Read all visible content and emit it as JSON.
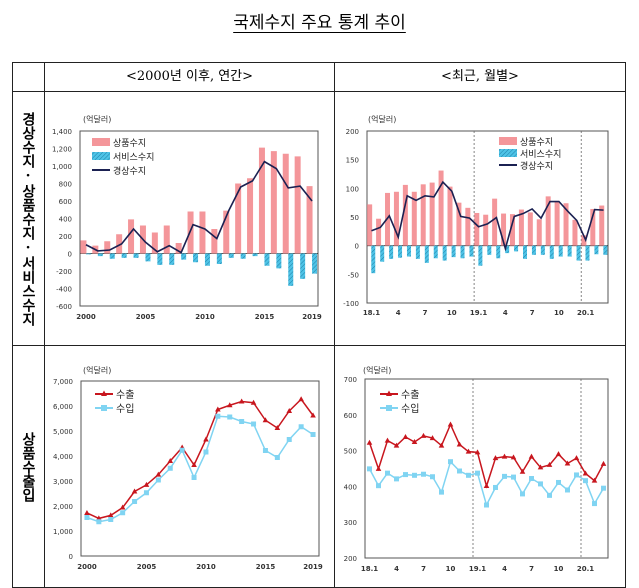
{
  "title": "국제수지 주요 통계 추이",
  "table": {
    "col_headers": [
      "<2000년 이후, 연간>",
      "<최근, 월별>"
    ],
    "row_labels": [
      "경상수지·상품수지·서비스수지",
      "상품수출입"
    ]
  },
  "colors": {
    "goods": "#f4969a",
    "services": "#4ec3e6",
    "current": "#1b2152",
    "export": "#c8161e",
    "import": "#80d4f2"
  },
  "chart_data": [
    {
      "type": "bar+line",
      "unit": "(억달러)",
      "ylim": [
        -600,
        1400
      ],
      "yticks": [
        "-600",
        "-400",
        "-200",
        "0",
        "200",
        "400",
        "600",
        "800",
        "1,000",
        "1,200",
        "1,400"
      ],
      "categories": [
        "2000",
        "2001",
        "2002",
        "2003",
        "2004",
        "2005",
        "2006",
        "2007",
        "2008",
        "2009",
        "2010",
        "2011",
        "2012",
        "2013",
        "2014",
        "2015",
        "2016",
        "2017",
        "2018",
        "2019"
      ],
      "x_ticks": [
        {
          "category": "2000",
          "label": "2000"
        },
        {
          "category": "2005",
          "label": "2005"
        },
        {
          "category": "2010",
          "label": "2010"
        },
        {
          "category": "2015",
          "label": "2015"
        },
        {
          "category": "2019",
          "label": "2019"
        }
      ],
      "legend": "top-left",
      "series": [
        {
          "name": "상품수지",
          "kind": "bar",
          "color_key": "goods",
          "values": [
            150,
            90,
            140,
            220,
            390,
            320,
            240,
            320,
            120,
            480,
            480,
            280,
            490,
            800,
            860,
            1210,
            1170,
            1140,
            1110,
            770
          ]
        },
        {
          "name": "서비스수지",
          "kind": "bar-hatched",
          "color_key": "services",
          "values": [
            -10,
            -30,
            -60,
            -50,
            -50,
            -90,
            -130,
            -130,
            -70,
            -100,
            -140,
            -120,
            -50,
            -60,
            -30,
            -140,
            -170,
            -370,
            -290,
            -230
          ]
        },
        {
          "name": "경상수지",
          "kind": "line",
          "color_key": "current",
          "values": [
            100,
            30,
            40,
            110,
            280,
            130,
            20,
            90,
            10,
            330,
            280,
            170,
            490,
            760,
            830,
            1050,
            970,
            750,
            770,
            600
          ]
        }
      ]
    },
    {
      "type": "bar+line",
      "unit": "(억달러)",
      "ylim": [
        -100,
        200
      ],
      "yticks": [
        "-100",
        "-50",
        "0",
        "50",
        "100",
        "150",
        "200"
      ],
      "categories": [
        "18.1",
        "18.2",
        "18.3",
        "18.4",
        "18.5",
        "18.6",
        "18.7",
        "18.8",
        "18.9",
        "18.10",
        "18.11",
        "18.12",
        "19.1",
        "19.2",
        "19.3",
        "19.4",
        "19.5",
        "19.6",
        "19.7",
        "19.8",
        "19.9",
        "19.10",
        "19.11",
        "19.12",
        "20.1",
        "20.2",
        "20.3"
      ],
      "x_ticks": [
        {
          "category": "18.1",
          "label": "18.1"
        },
        {
          "category": "18.4",
          "label": "4"
        },
        {
          "category": "18.7",
          "label": "7"
        },
        {
          "category": "18.10",
          "label": "10"
        },
        {
          "category": "19.1",
          "label": "19.1"
        },
        {
          "category": "19.4",
          "label": "4"
        },
        {
          "category": "19.7",
          "label": "7"
        },
        {
          "category": "19.10",
          "label": "10"
        },
        {
          "category": "20.1",
          "label": "20.1"
        }
      ],
      "year_separators": [
        "19.1",
        "20.1"
      ],
      "legend": "top-right",
      "series": [
        {
          "name": "상품수지",
          "kind": "bar",
          "color_key": "goods",
          "values": [
            72,
            47,
            92,
            94,
            106,
            94,
            107,
            110,
            131,
            103,
            75,
            66,
            57,
            54,
            82,
            56,
            55,
            63,
            58,
            46,
            86,
            78,
            74,
            45,
            18,
            64,
            70
          ]
        },
        {
          "name": "서비스수지",
          "kind": "bar-hatched",
          "color_key": "services",
          "values": [
            -48,
            -28,
            -23,
            -21,
            -19,
            -23,
            -30,
            -22,
            -26,
            -20,
            -22,
            -19,
            -35,
            -16,
            -22,
            -13,
            -10,
            -23,
            -16,
            -16,
            -23,
            -19,
            -19,
            -26,
            -26,
            -15,
            -16
          ]
        },
        {
          "name": "경상수지",
          "kind": "line",
          "color_key": "current",
          "values": [
            26,
            32,
            52,
            15,
            87,
            79,
            87,
            85,
            111,
            95,
            51,
            48,
            33,
            38,
            49,
            -5,
            51,
            56,
            64,
            48,
            77,
            77,
            60,
            44,
            10,
            63,
            62
          ]
        }
      ]
    },
    {
      "type": "line",
      "unit": "(억달러)",
      "ylim": [
        0,
        7000
      ],
      "yticks": [
        "0",
        "1,000",
        "2,000",
        "3,000",
        "4,000",
        "5,000",
        "6,000",
        "7,000"
      ],
      "categories": [
        "2000",
        "2001",
        "2002",
        "2003",
        "2004",
        "2005",
        "2006",
        "2007",
        "2008",
        "2009",
        "2010",
        "2011",
        "2012",
        "2013",
        "2014",
        "2015",
        "2016",
        "2017",
        "2018",
        "2019"
      ],
      "x_ticks": [
        {
          "category": "2000",
          "label": "2000"
        },
        {
          "category": "2005",
          "label": "2005"
        },
        {
          "category": "2010",
          "label": "2010"
        },
        {
          "category": "2015",
          "label": "2015"
        },
        {
          "category": "2019",
          "label": "2019"
        }
      ],
      "legend": "top-left",
      "series": [
        {
          "name": "수출",
          "kind": "line-triangle",
          "color_key": "export",
          "values": [
            1722,
            1504,
            1625,
            1938,
            2580,
            2844,
            3256,
            3800,
            4340,
            3640,
            4660,
            5860,
            6030,
            6180,
            6130,
            5430,
            5120,
            5800,
            6270,
            5620
          ]
        },
        {
          "name": "수입",
          "kind": "line-square",
          "color_key": "import",
          "values": [
            1540,
            1370,
            1460,
            1730,
            2180,
            2530,
            3040,
            3510,
            4230,
            3140,
            4160,
            5590,
            5560,
            5380,
            5280,
            4220,
            3940,
            4660,
            5170,
            4860
          ]
        }
      ]
    },
    {
      "type": "line",
      "unit": "(억달러)",
      "ylim": [
        200,
        700
      ],
      "yticks": [
        "200",
        "300",
        "400",
        "500",
        "600",
        "700"
      ],
      "categories": [
        "18.1",
        "18.2",
        "18.3",
        "18.4",
        "18.5",
        "18.6",
        "18.7",
        "18.8",
        "18.9",
        "18.10",
        "18.11",
        "18.12",
        "19.1",
        "19.2",
        "19.3",
        "19.4",
        "19.5",
        "19.6",
        "19.7",
        "19.8",
        "19.9",
        "19.10",
        "19.11",
        "19.12",
        "20.1",
        "20.2",
        "20.3"
      ],
      "x_ticks": [
        {
          "category": "18.1",
          "label": "18.1"
        },
        {
          "category": "18.4",
          "label": "4"
        },
        {
          "category": "18.7",
          "label": "7"
        },
        {
          "category": "18.10",
          "label": "10"
        },
        {
          "category": "19.1",
          "label": "19.1"
        },
        {
          "category": "19.4",
          "label": "4"
        },
        {
          "category": "19.7",
          "label": "7"
        },
        {
          "category": "19.10",
          "label": "10"
        },
        {
          "category": "20.1",
          "label": "20.1"
        }
      ],
      "year_separators": [
        "19.1",
        "20.1"
      ],
      "legend": "top-left",
      "series": [
        {
          "name": "수출",
          "kind": "line-triangle",
          "color_key": "export",
          "values": [
            522,
            449,
            528,
            514,
            538,
            524,
            541,
            535,
            514,
            573,
            517,
            497,
            495,
            401,
            479,
            483,
            481,
            441,
            483,
            453,
            460,
            490,
            464,
            479,
            436,
            416,
            463
          ]
        },
        {
          "name": "수입",
          "kind": "line-square",
          "color_key": "import",
          "values": [
            449,
            402,
            437,
            421,
            433,
            431,
            434,
            427,
            384,
            469,
            443,
            431,
            437,
            348,
            397,
            428,
            426,
            379,
            422,
            407,
            375,
            411,
            390,
            432,
            416,
            352,
            395
          ]
        }
      ]
    }
  ]
}
